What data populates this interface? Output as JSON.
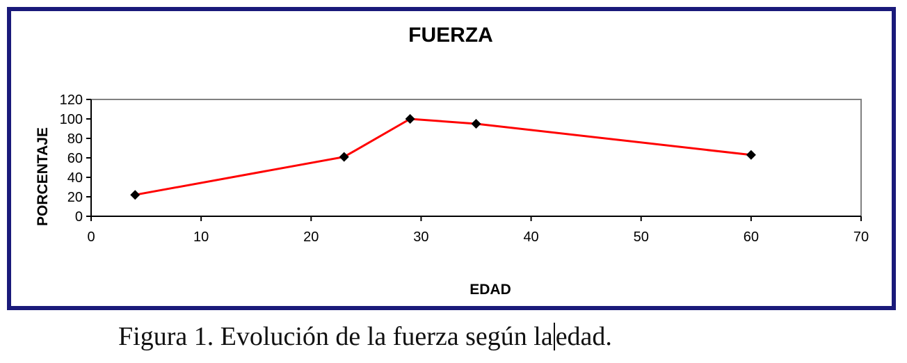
{
  "chart_data": {
    "type": "line",
    "title": "FUERZA",
    "xlabel": "EDAD",
    "ylabel": "PORCENTAJE",
    "xlim": [
      0,
      70
    ],
    "ylim": [
      0,
      120
    ],
    "xticks": [
      0,
      10,
      20,
      30,
      40,
      50,
      60,
      70
    ],
    "yticks": [
      0,
      20,
      40,
      60,
      80,
      100,
      120
    ],
    "grid": false,
    "legend": "none",
    "series": [
      {
        "x": [
          4,
          23,
          29,
          35,
          60
        ],
        "y": [
          22,
          61,
          100,
          95,
          63
        ],
        "color": "#ff0000",
        "marker_color": "#000000",
        "marker": "diamond"
      }
    ]
  },
  "caption": {
    "before_cursor": "Figura 1. Evolución de la fuerza según la",
    "after_cursor": "edad."
  },
  "colors": {
    "frame": "#1a1a7a",
    "axis": "#808080"
  }
}
